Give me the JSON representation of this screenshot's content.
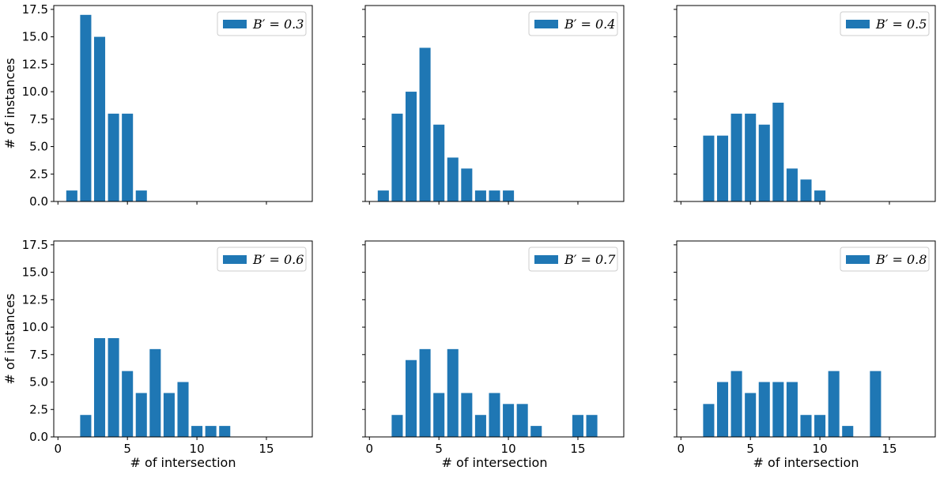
{
  "chart_data": {
    "type": "bar",
    "layout": "2x3 grid, shared x and y axes",
    "bar_color": "#1f77b4",
    "xlabel": "# of intersection",
    "ylabel": "# of instances",
    "xlim": [
      -0.3,
      18.3
    ],
    "ylim": [
      0,
      17.85
    ],
    "xticks": [
      0,
      5,
      10,
      15
    ],
    "yticks": [
      0,
      2.5,
      5,
      7.5,
      10,
      12.5,
      15,
      17.5
    ],
    "xtick_labels": [
      "0",
      "5",
      "10",
      "15"
    ],
    "ytick_labels": [
      "0.0",
      "2.5",
      "5.0",
      "7.5",
      "10.0",
      "12.5",
      "15.0",
      "17.5"
    ],
    "legend_position": "top-right",
    "panels": [
      {
        "legend": "B′ = 0.3",
        "x": [
          1,
          2,
          3,
          4,
          5,
          6
        ],
        "values": [
          1,
          17,
          15,
          8,
          8,
          1
        ]
      },
      {
        "legend": "B′ = 0.4",
        "x": [
          1,
          2,
          3,
          4,
          5,
          6,
          7,
          8,
          9,
          10
        ],
        "values": [
          1,
          8,
          10,
          14,
          7,
          4,
          3,
          1,
          1,
          1
        ]
      },
      {
        "legend": "B′ = 0.5",
        "x": [
          2,
          3,
          4,
          5,
          6,
          7,
          8,
          9,
          10
        ],
        "values": [
          6,
          6,
          8,
          8,
          7,
          9,
          3,
          2,
          1
        ]
      },
      {
        "legend": "B′ = 0.6",
        "x": [
          2,
          3,
          4,
          5,
          6,
          7,
          8,
          9,
          10,
          11,
          12
        ],
        "values": [
          2,
          9,
          9,
          6,
          4,
          8,
          4,
          5,
          1,
          1,
          1
        ]
      },
      {
        "legend": "B′ = 0.7",
        "x": [
          2,
          3,
          4,
          5,
          6,
          7,
          8,
          9,
          10,
          11,
          12,
          15,
          16
        ],
        "values": [
          2,
          7,
          8,
          4,
          8,
          4,
          2,
          4,
          3,
          3,
          1,
          2,
          2
        ]
      },
      {
        "legend": "B′ = 0.8",
        "x": [
          2,
          3,
          4,
          5,
          6,
          7,
          8,
          9,
          10,
          11,
          12,
          14
        ],
        "values": [
          3,
          5,
          6,
          4,
          5,
          5,
          5,
          2,
          2,
          6,
          1,
          6
        ]
      }
    ]
  }
}
